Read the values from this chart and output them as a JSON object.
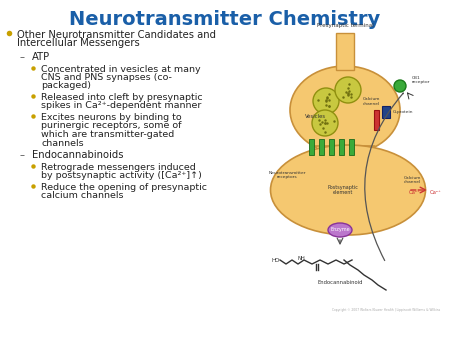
{
  "title": "Neurotransmitter Chemistry",
  "title_color": "#1a5fa8",
  "background_color": "#ffffff",
  "title_fontsize": 14,
  "bullet_color": "#c8a000",
  "dash_color": "#555555",
  "text_color": "#222222",
  "content": [
    {
      "level": 0,
      "text": "Other Neurotransmitter Candidates and\nIntercellular Messengers"
    },
    {
      "level": 1,
      "text": "ATP"
    },
    {
      "level": 2,
      "text": "Concentrated in vesicles at many\nCNS and PNS synapses (co-\npackaged)"
    },
    {
      "level": 2,
      "text": "Released into cleft by presynaptic\nspikes in Ca²⁺-dependent manner"
    },
    {
      "level": 2,
      "text": "Excites neurons by binding to\npurinergic receptors, some of\nwhich are transmitter-gated\nchannels"
    },
    {
      "level": 1,
      "text": "Endocannabinoids"
    },
    {
      "level": 2,
      "text": "Retrograde messengers induced\nby postsynaptic activity ([Ca²⁺]↑)"
    },
    {
      "level": 2,
      "text": "Reduce the opening of presynaptic\ncalcium channels"
    }
  ],
  "diagram": {
    "pre_terminal_color": "#f5c870",
    "pre_terminal_edge": "#c8903a",
    "vesicle_color": "#c8c840",
    "vesicle_edge": "#909010",
    "vesicle_dot_color": "#707010",
    "receptor_color": "#3aaa3a",
    "receptor_edge": "#1a7a1a",
    "gprotein_color": "#224488",
    "gprotein_edge": "#112266",
    "enzyme_color": "#bb77cc",
    "enzyme_edge": "#883399",
    "ca_color": "#cc3333",
    "arrow_color": "#555555",
    "label_color": "#333333",
    "copyright": "Copyright © 2007 Wolters Kluwer Health | Lippincott Williams & Wilkins"
  }
}
